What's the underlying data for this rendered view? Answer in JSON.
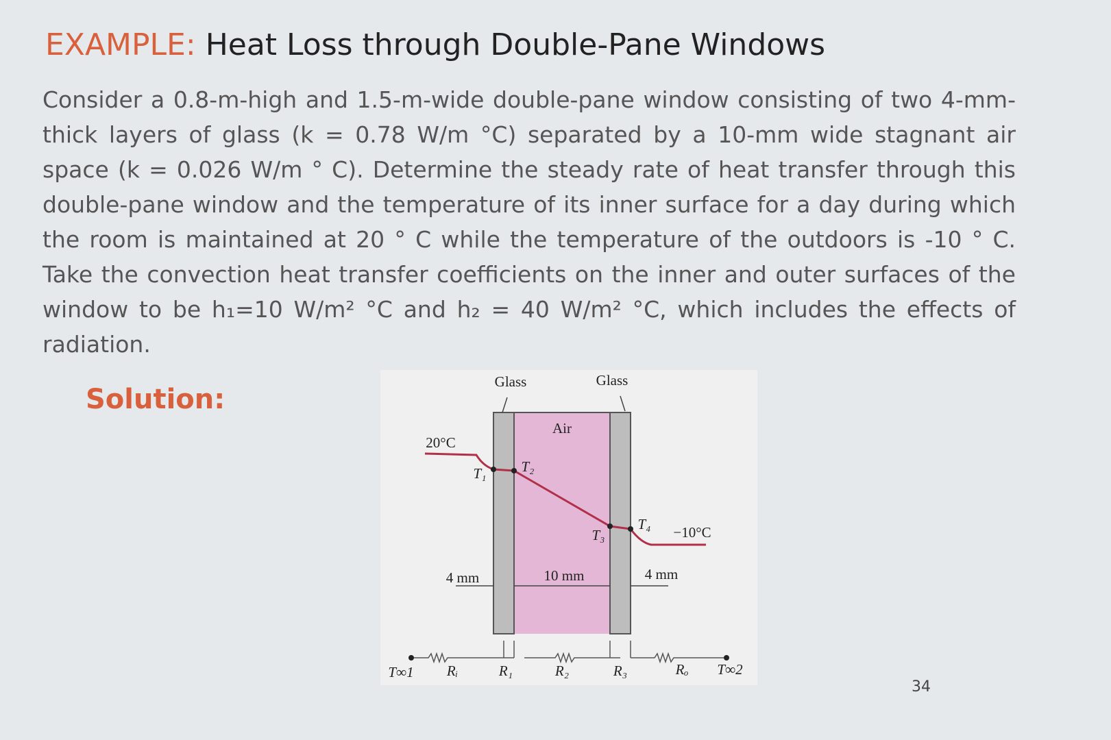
{
  "header": {
    "prefix": "EXAMPLE:",
    "title": "Heat Loss through Double-Pane Windows"
  },
  "problem": "Consider a 0.8-m-high and 1.5-m-wide double-pane window consisting of two 4-mm-thick layers of glass (k = 0.78 W/m °C) separated by a 10-mm wide stagnant air space (k = 0.026 W/m ° C). Determine the steady rate of heat transfer through this double-pane window and the temperature of its inner surface for a day during which the room is maintained at 20 ° C while the temperature of the outdoors is -10 ° C. Take the convection heat transfer coefficients on the inner and outer surfaces of the window to be h₁=10 W/m² °C and h₂ = 40 W/m² °C, which includes the effects of radiation.",
  "solution_label": "Solution:",
  "figure": {
    "glass_left": "Glass",
    "glass_right": "Glass",
    "air": "Air",
    "t_inside": "20°C",
    "t1": "T₁",
    "t2": "T₂",
    "t3": "T₃",
    "t4": "T₄",
    "t_outside": "−10°C",
    "thick_left": "4 mm",
    "thick_air": "10 mm",
    "thick_right": "4 mm",
    "t_inf1": "T∞1",
    "r_i": "Rᵢ",
    "r_1": "R₁",
    "r_2": "R₂",
    "r_3": "R₃",
    "r_o": "Rₒ",
    "t_inf2": "T∞2"
  },
  "page_number": "34"
}
